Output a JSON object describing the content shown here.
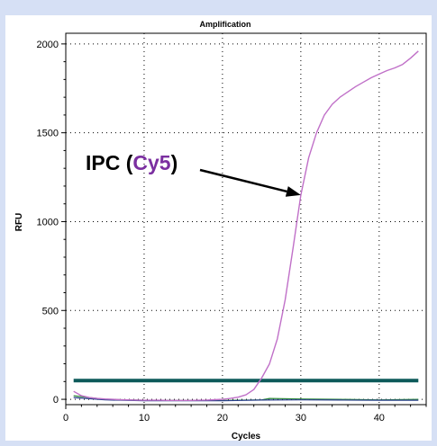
{
  "chart_data": {
    "type": "line",
    "title": "Amplification",
    "xlabel": "Cycles",
    "ylabel": "RFU",
    "xlim": [
      0,
      46
    ],
    "ylim": [
      -30,
      2060
    ],
    "x_ticks": [
      0,
      10,
      20,
      30,
      40
    ],
    "y_ticks": [
      0,
      500,
      1000,
      1500,
      2000
    ],
    "grid": true,
    "colors": {
      "cy5": "#c070c8",
      "threshold": "#0d5a5a",
      "baseline_green": "#2f8a3c",
      "baseline_blue": "#2a3e8e",
      "annotation_text": "#000000",
      "annotation_highlight": "#7b2fa0"
    },
    "series": [
      {
        "name": "Cy5",
        "x": [
          1,
          2,
          3,
          4,
          5,
          6,
          7,
          8,
          9,
          10,
          11,
          12,
          13,
          14,
          15,
          16,
          17,
          18,
          19,
          20,
          21,
          22,
          23,
          24,
          25,
          26,
          27,
          28,
          29,
          30,
          31,
          32,
          33,
          34,
          35,
          36,
          37,
          38,
          39,
          40,
          41,
          42,
          43,
          44,
          45
        ],
        "values": [
          45,
          20,
          10,
          5,
          2,
          0,
          -2,
          -3,
          -4,
          -5,
          -5,
          -5,
          -6,
          -6,
          -6,
          -6,
          -5,
          -4,
          -2,
          0,
          5,
          12,
          25,
          55,
          120,
          200,
          340,
          560,
          850,
          1150,
          1360,
          1500,
          1600,
          1660,
          1700,
          1730,
          1760,
          1785,
          1810,
          1830,
          1850,
          1865,
          1885,
          1920,
          1960
        ]
      },
      {
        "x": [
          1,
          5,
          10,
          15,
          20,
          25,
          26,
          30,
          35,
          40,
          45
        ],
        "values": [
          20,
          0,
          -5,
          -6,
          -6,
          -3,
          5,
          2,
          0,
          -3,
          0
        ]
      },
      {
        "x": [
          1,
          5,
          10,
          15,
          20,
          25,
          30,
          35,
          40,
          45
        ],
        "values": [
          10,
          -3,
          -8,
          -8,
          -8,
          -4,
          -3,
          -4,
          -5,
          -5
        ]
      },
      {
        "x": [
          1,
          45
        ],
        "values": [
          105,
          105
        ]
      }
    ],
    "annotation": {
      "text_prefix": "IPC (",
      "text_highlight": "Cy5",
      "text_suffix": ")",
      "points_to": {
        "x": 30,
        "y": 1150
      }
    }
  }
}
